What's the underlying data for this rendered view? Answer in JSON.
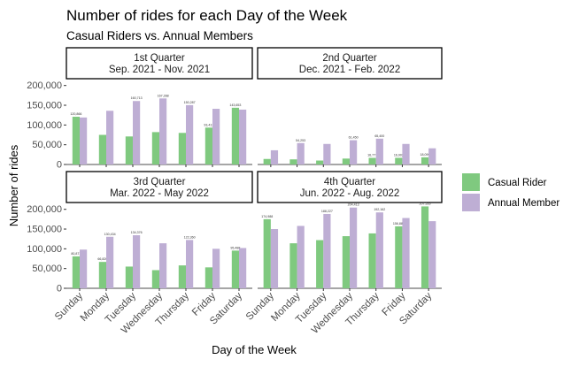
{
  "chart_data": {
    "type": "bar",
    "title": "Number of rides for each Day of the Week",
    "subtitle": "Casual Riders vs. Annual Members",
    "xlabel": "Day of the Week",
    "ylabel": "Number of rides",
    "ylim": [
      0,
      215000
    ],
    "yticks": [
      0,
      50000,
      100000,
      150000,
      200000
    ],
    "ytick_labels": [
      "0",
      "50,000",
      "100,000",
      "150,000",
      "200,000"
    ],
    "categories": [
      "Sunday",
      "Monday",
      "Tuesday",
      "Wednesday",
      "Thursday",
      "Friday",
      "Saturday"
    ],
    "legend": {
      "position": "right",
      "items": [
        {
          "name": "Casual Rider",
          "color": "#7fc97f"
        },
        {
          "name": "Annual Member",
          "color": "#beaed4"
        }
      ]
    },
    "panels": [
      {
        "title": "1st Quarter",
        "subtitle": "Sep. 2021 - Nov. 2021",
        "series": [
          {
            "name": "Casual Rider",
            "values": [
              120866,
              75000,
              71000,
              82000,
              80000,
              93413,
              143653
            ],
            "labels": [
              "120,866",
              "",
              "",
              "",
              "",
              "93,413",
              "143,653"
            ]
          },
          {
            "name": "Annual Member",
            "values": [
              119000,
              136000,
              160713,
              167288,
              150287,
              141000,
              139000
            ],
            "labels": [
              "",
              "",
              "160,713",
              "167,288",
              "150,287",
              "",
              ""
            ]
          }
        ]
      },
      {
        "title": "2nd Quarter",
        "subtitle": "Dec. 2021 - Feb. 2022",
        "series": [
          {
            "name": "Casual Rider",
            "values": [
              14000,
              13000,
              10000,
              15000,
              16777,
              16902,
              18099
            ],
            "labels": [
              "",
              "",
              "",
              "",
              "16,777",
              "16,902",
              "18,099"
            ]
          },
          {
            "name": "Annual Member",
            "values": [
              36000,
              54253,
              52000,
              61450,
              65400,
              52000,
              41000
            ],
            "labels": [
              "",
              "54,253",
              "",
              "61,450",
              "65,400",
              "",
              ""
            ]
          }
        ]
      },
      {
        "title": "3rd Quarter",
        "subtitle": "Mar. 2022 - May 2022",
        "series": [
          {
            "name": "Casual Rider",
            "values": [
              80871,
              66820,
              55000,
              46000,
              58000,
              53000,
              95488
            ],
            "labels": [
              "80,871",
              "66,820",
              "",
              "",
              "",
              "",
              "95,488"
            ]
          },
          {
            "name": "Annual Member",
            "values": [
              98000,
              130434,
              134376,
              114000,
              122360,
              100000,
              102000
            ],
            "labels": [
              "",
              "130,434",
              "134,376",
              "",
              "122,360",
              "",
              ""
            ]
          }
        ]
      },
      {
        "title": "4th Quarter",
        "subtitle": "Jun. 2022 - Aug. 2022",
        "series": [
          {
            "name": "Casual Rider",
            "values": [
              174988,
              114000,
              122000,
              132000,
              139000,
              156880,
              207355
            ],
            "labels": [
              "174,988",
              "",
              "",
              "",
              "",
              "156,880",
              "207,355"
            ]
          },
          {
            "name": "Annual Member",
            "values": [
              150000,
              158000,
              188227,
              204413,
              192162,
              178000,
              170000
            ],
            "labels": [
              "",
              "",
              "188,227",
              "204,413",
              "192,162",
              "",
              ""
            ]
          }
        ]
      }
    ]
  }
}
